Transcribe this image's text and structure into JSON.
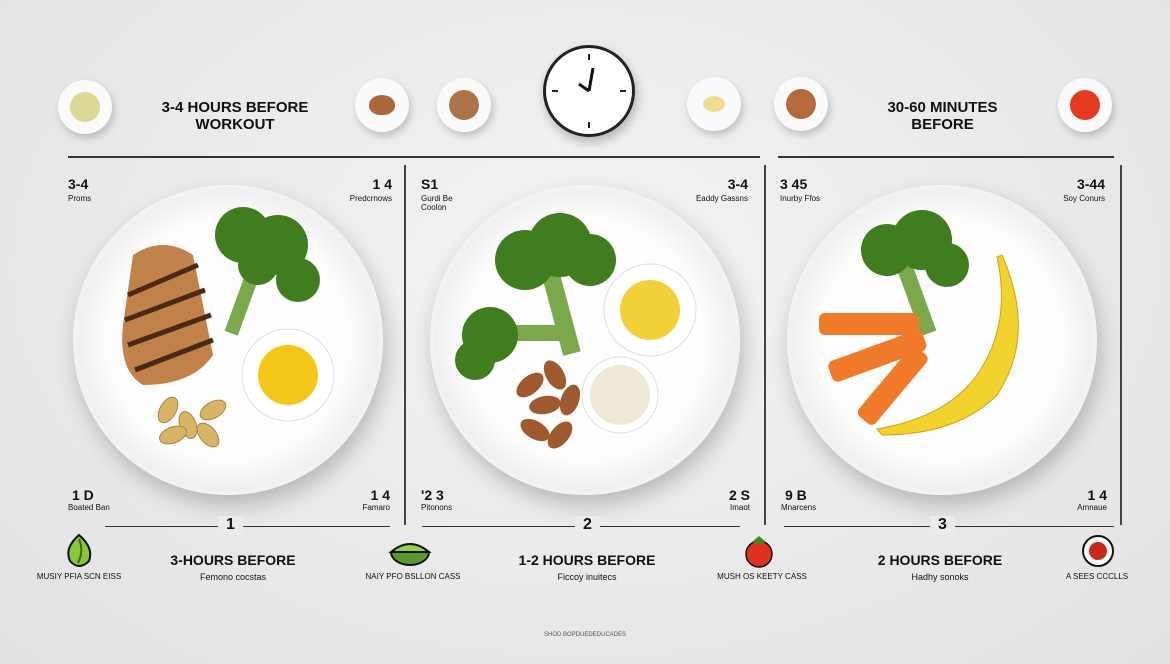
{
  "header": {
    "left_title": "3-4 HOURS BEFORE WORKOUT",
    "right_title": "30-60 MINUTES BEFORE",
    "clock_icon": "clock-icon"
  },
  "panels": [
    {
      "top_left_num": "3-4",
      "top_left_label": "Proms",
      "top_right_num": "1 4",
      "top_right_label": "Predcrnows",
      "bottom_left_num": "1 D",
      "bottom_left_label": "Boated Ban",
      "bottom_right_num": "1 4",
      "bottom_right_label": "Famaro",
      "step": "1",
      "title": "3-HOURS BEFORE",
      "subtitle": "Femono cocstas"
    },
    {
      "top_left_num": "S1",
      "top_left_label": "Gurdi Be Coolon",
      "top_right_num": "3-4",
      "top_right_label": "Eaddy Gassns",
      "bottom_left_num": "'2 3",
      "bottom_left_label": "Pitonons",
      "bottom_right_num": "2 S",
      "bottom_right_label": "Imaot",
      "step": "2",
      "title": "1-2 HOURS BEFORE",
      "subtitle": "Ficcoy inuitecs"
    },
    {
      "top_left_num": "3 45",
      "top_left_label": "Inurby Ffos",
      "top_right_num": "3-44",
      "top_right_label": "Soy Conurs",
      "bottom_left_num": "9 B",
      "bottom_left_label": "Mnarcens",
      "bottom_right_num": "1 4",
      "bottom_right_label": "Amnaue",
      "step": "3",
      "title": "2 HOURS BEFORE",
      "subtitle": "Hadhy sonoks"
    }
  ],
  "icons": [
    {
      "name": "leaf-icon",
      "caption": "MUSIY PFIA SCN EISS"
    },
    {
      "name": "lime-icon",
      "caption": "NAIY PFO BSLLON CASS"
    },
    {
      "name": "tomato-icon",
      "caption": "MUSH OS KEETY CASS"
    },
    {
      "name": "sauce-bowl-icon",
      "caption": "A SEES CCCLLS"
    }
  ],
  "footer": "SHOD BOPDUEDEDUCADES",
  "colors": {
    "broccoli": "#3f7d1e",
    "banana": "#f2d22c",
    "carrot": "#f07a2a",
    "sauce": "#f3c718"
  }
}
